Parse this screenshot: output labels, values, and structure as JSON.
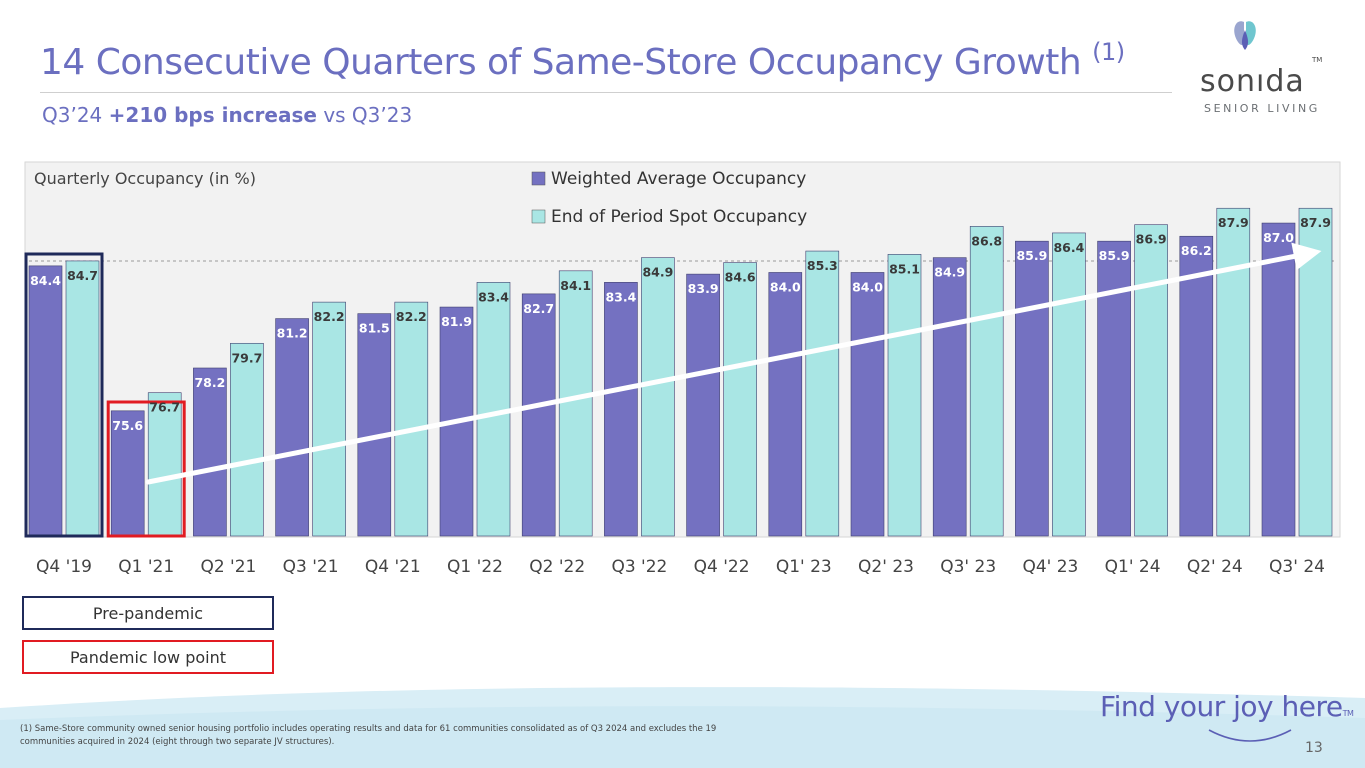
{
  "header": {
    "title": "14 Consecutive Quarters of Same-Store Occupancy Growth",
    "title_sup": "(1)",
    "subtitle_prefix": "Q3’24",
    "subtitle_bold": "+210 bps increase",
    "subtitle_suffix": "vs Q3’23"
  },
  "logo": {
    "word": "sonıda",
    "tm": "TM",
    "subtitle": "SENIOR LIVING"
  },
  "colors": {
    "weighted": "#7471c1",
    "spot": "#a9e6e4",
    "title": "#6b6fc0",
    "pre_box": "#1f2a5a",
    "low_box": "#e11b22"
  },
  "chart_data": {
    "type": "bar",
    "title": "Quarterly Occupancy (in %)",
    "categories": [
      "Q4 '19",
      "Q1 '21",
      "Q2 '21",
      "Q3 '21",
      "Q4 '21",
      "Q1 '22",
      "Q2 '22",
      "Q3 '22",
      "Q4 '22",
      "Q1' 23",
      "Q2' 23",
      "Q3' 23",
      "Q4' 23",
      "Q1' 24",
      "Q2' 24",
      "Q3' 24"
    ],
    "series": [
      {
        "name": "Weighted Average Occupancy",
        "values": [
          84.4,
          75.6,
          78.2,
          81.2,
          81.5,
          81.9,
          82.7,
          83.4,
          83.9,
          84.0,
          84.0,
          84.9,
          85.9,
          85.9,
          86.2,
          87.0
        ]
      },
      {
        "name": "End of Period Spot Occupancy",
        "values": [
          84.7,
          76.7,
          79.7,
          82.2,
          82.2,
          83.4,
          84.1,
          84.9,
          84.6,
          85.3,
          85.1,
          86.8,
          86.4,
          86.9,
          87.9,
          87.9
        ]
      }
    ],
    "legend": "top-center",
    "reference_line": 84.7,
    "highlight": {
      "pre_pandemic": "Q4 '19",
      "pandemic_low": "Q1 '21"
    },
    "trend_arrow": {
      "from": "Q1 '21",
      "to": "Q3' 24"
    }
  },
  "legend_boxes": {
    "pre": "Pre-pandemic",
    "low": "Pandemic low point"
  },
  "footnote": "(1) Same-Store community owned senior housing portfolio includes operating results and data for 61 communities consolidated as of Q3 2024 and excludes the 19 communities acquired in 2024 (eight through two separate JV structures).",
  "tagline": "Find your joy here",
  "tagline_tm": "TM",
  "page_number": "13"
}
